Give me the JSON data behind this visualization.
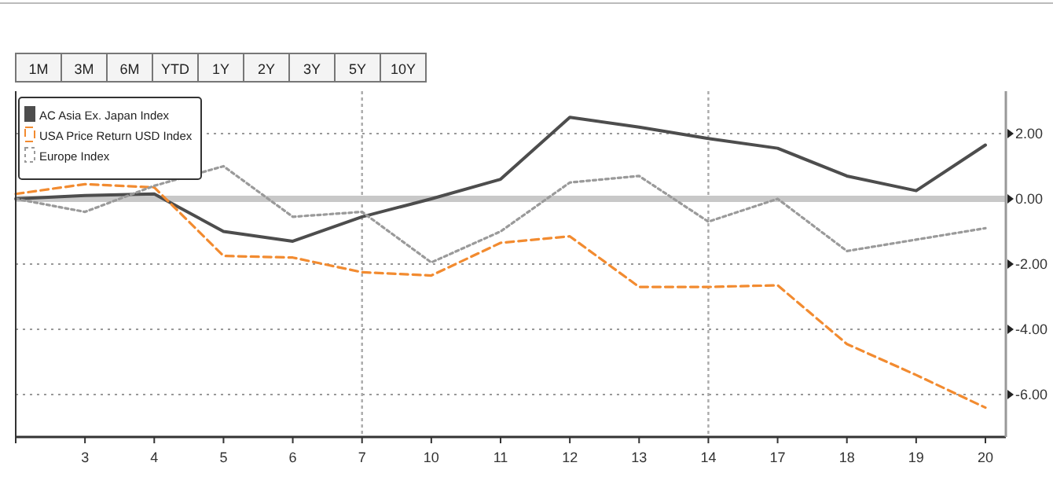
{
  "chart_data": {
    "type": "line",
    "categories": [
      null,
      "3",
      "4",
      "5",
      "6",
      "7",
      "10",
      "11",
      "12",
      "13",
      "14",
      "17",
      "18",
      "19",
      "20"
    ],
    "series": [
      {
        "name": "AC Asia Ex. Japan Index",
        "color": "#4d4d4d",
        "line_style": "solid",
        "values": [
          0,
          0.1,
          0.15,
          -1.0,
          -1.3,
          -0.55,
          0,
          0.6,
          2.5,
          2.2,
          1.85,
          1.55,
          0.7,
          0.25,
          1.65
        ]
      },
      {
        "name": "USA Price Return USD Index",
        "color": "#f28b30",
        "line_style": "dashed",
        "values": [
          0.15,
          0.45,
          0.35,
          -1.75,
          -1.8,
          -2.25,
          -2.35,
          -1.35,
          -1.15,
          -2.7,
          -2.7,
          -2.65,
          -4.45,
          -5.4,
          -6.4
        ]
      },
      {
        "name": "Europe Index",
        "color": "#9a9a9a",
        "line_style": "dotted",
        "values": [
          0,
          -0.4,
          0.4,
          1.0,
          -0.55,
          -0.4,
          -1.95,
          -1.0,
          0.5,
          0.7,
          -0.7,
          0,
          -1.6,
          -1.25,
          -0.9
        ]
      }
    ],
    "ylim": [
      -7.3,
      3.3
    ],
    "yticks": [
      {
        "value": 2,
        "label": "2.00"
      },
      {
        "value": 0,
        "label": "0.00"
      },
      {
        "value": -2,
        "label": "-2.00"
      },
      {
        "value": -4,
        "label": "-4.00"
      },
      {
        "value": -6,
        "label": "-6.00"
      }
    ],
    "grid": "y",
    "ref_lines": [
      {
        "axis": "x",
        "value": "7",
        "color": "#aaaaaa",
        "line_style": "dotted"
      },
      {
        "axis": "x",
        "value": "14",
        "color": "#aaaaaa",
        "line_style": "dotted"
      },
      {
        "axis": "y",
        "value": 0,
        "color": "#c8c8c8",
        "line_style": "solid"
      }
    ],
    "legend": "top left",
    "annotations": [
      "1M",
      "3M",
      "6M",
      "YTD",
      "1Y",
      "2Y",
      "3Y",
      "5Y",
      "10Y"
    ]
  }
}
